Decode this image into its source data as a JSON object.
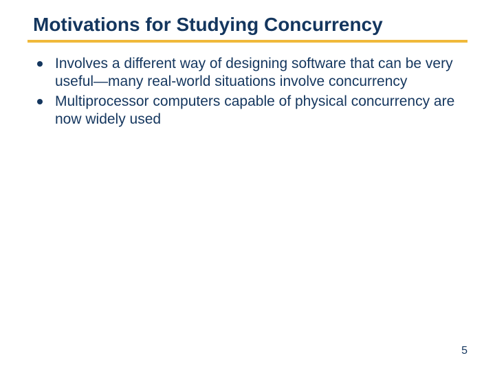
{
  "title": "Motivations for Studying Concurrency",
  "bullets": [
    {
      "text": "Involves a different way of designing software that can be very useful—many real-world situations involve concurrency"
    },
    {
      "text": "Multiprocessor computers capable of physical concurrency are now widely used"
    }
  ],
  "pageNumber": "5",
  "colors": {
    "title": "#14365e",
    "divider": "#f0b93a",
    "bullet": "#14365e",
    "bodyText": "#14365e",
    "background": "#ffffff"
  },
  "fonts": {
    "titleSize": 28,
    "bodySize": 21,
    "pageNumSize": 16
  }
}
